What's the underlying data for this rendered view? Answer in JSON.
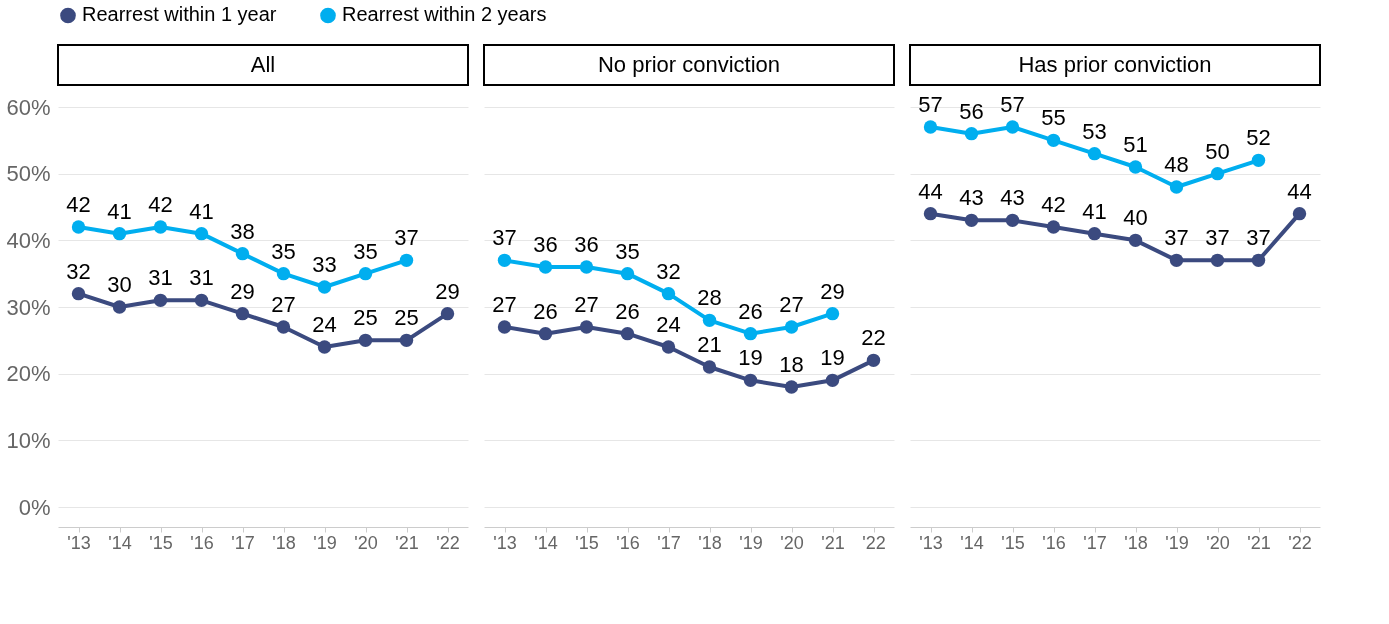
{
  "chart_data": [
    {
      "type": "line",
      "title": "All",
      "categories": [
        "'13",
        "'14",
        "'15",
        "'16",
        "'17",
        "'18",
        "'19",
        "'20",
        "'21",
        "'22"
      ],
      "ylim": [
        -3,
        60
      ],
      "yticks": [
        {
          "value": 0,
          "label": "0%"
        },
        {
          "value": 10,
          "label": "10%"
        },
        {
          "value": 20,
          "label": "20%"
        },
        {
          "value": 30,
          "label": "30%"
        },
        {
          "value": 40,
          "label": "40%"
        },
        {
          "value": 50,
          "label": "50%"
        },
        {
          "value": 60,
          "label": "60%"
        }
      ],
      "grid": "y",
      "legend": "top",
      "marker": "circle",
      "line_style": "solid",
      "data_labels": true,
      "series": [
        {
          "name": "Rearrest within 1 year",
          "color": "#3b4a7f",
          "values": [
            32,
            30,
            31,
            31,
            29,
            27,
            24,
            25,
            25,
            29
          ]
        },
        {
          "name": "Rearrest within 2 years",
          "color": "#00aeef",
          "values": [
            42,
            41,
            42,
            41,
            38,
            35,
            33,
            35,
            37,
            null
          ]
        }
      ]
    },
    {
      "type": "line",
      "title": "No prior conviction",
      "categories": [
        "'13",
        "'14",
        "'15",
        "'16",
        "'17",
        "'18",
        "'19",
        "'20",
        "'21",
        "'22"
      ],
      "ylim": [
        -3,
        60
      ],
      "yticks": [
        0,
        10,
        20,
        30,
        40,
        50,
        60
      ],
      "tick_labels": "x",
      "grid": "y",
      "marker": "circle",
      "line_style": "solid",
      "data_labels": true,
      "series": [
        {
          "name": "Rearrest within 1 year",
          "color": "#3b4a7f",
          "values": [
            27,
            26,
            27,
            26,
            24,
            21,
            19,
            18,
            19,
            22
          ]
        },
        {
          "name": "Rearrest within 2 years",
          "color": "#00aeef",
          "values": [
            37,
            36,
            36,
            35,
            32,
            28,
            26,
            27,
            29,
            null
          ]
        }
      ]
    },
    {
      "type": "line",
      "title": "Has prior conviction",
      "categories": [
        "'13",
        "'14",
        "'15",
        "'16",
        "'17",
        "'18",
        "'19",
        "'20",
        "'21",
        "'22"
      ],
      "ylim": [
        -3,
        60
      ],
      "yticks": [
        0,
        10,
        20,
        30,
        40,
        50,
        60
      ],
      "tick_labels": "x",
      "grid": "y",
      "marker": "circle",
      "line_style": "solid",
      "data_labels": true,
      "series": [
        {
          "name": "Rearrest within 1 year",
          "color": "#3b4a7f",
          "values": [
            44,
            43,
            43,
            42,
            41,
            40,
            37,
            37,
            37,
            44
          ]
        },
        {
          "name": "Rearrest within 2 years",
          "color": "#00aeef",
          "values": [
            57,
            56,
            57,
            55,
            53,
            51,
            48,
            50,
            52,
            null
          ]
        }
      ]
    }
  ]
}
